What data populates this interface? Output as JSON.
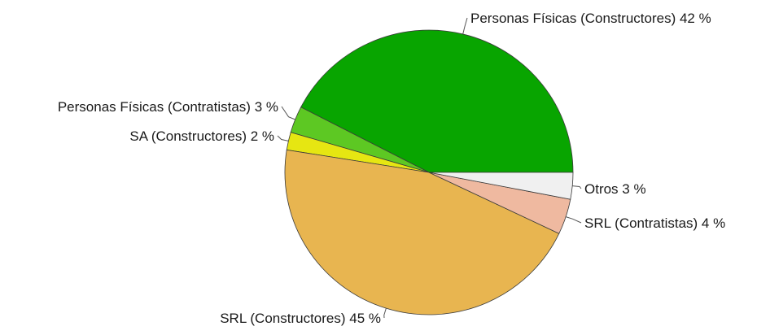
{
  "chart_data": {
    "type": "pie",
    "title": "",
    "start_angle_deg": 0,
    "direction": "counterclockwise",
    "slices": [
      {
        "label": "Personas Físicas (Constructores) 42 %",
        "category": "Personas Físicas (Constructores)",
        "value": 42,
        "color": "#08a500"
      },
      {
        "label": "Personas Físicas (Contratistas) 3 %",
        "category": "Personas Físicas (Contratistas)",
        "value": 3,
        "color": "#5dc823"
      },
      {
        "label": "SA (Constructores) 2 %",
        "category": "SA (Constructores)",
        "value": 2,
        "color": "#e6e612"
      },
      {
        "label": "SRL (Constructores) 45 %",
        "category": "SRL (Constructores)",
        "value": 45,
        "color": "#e8b550"
      },
      {
        "label": "SRL (Contratistas) 4 %",
        "category": "SRL (Contratistas)",
        "value": 4,
        "color": "#efb9a0"
      },
      {
        "label": "Otros 3 %",
        "category": "Otros",
        "value": 3,
        "color": "#f0f0f0"
      }
    ]
  }
}
